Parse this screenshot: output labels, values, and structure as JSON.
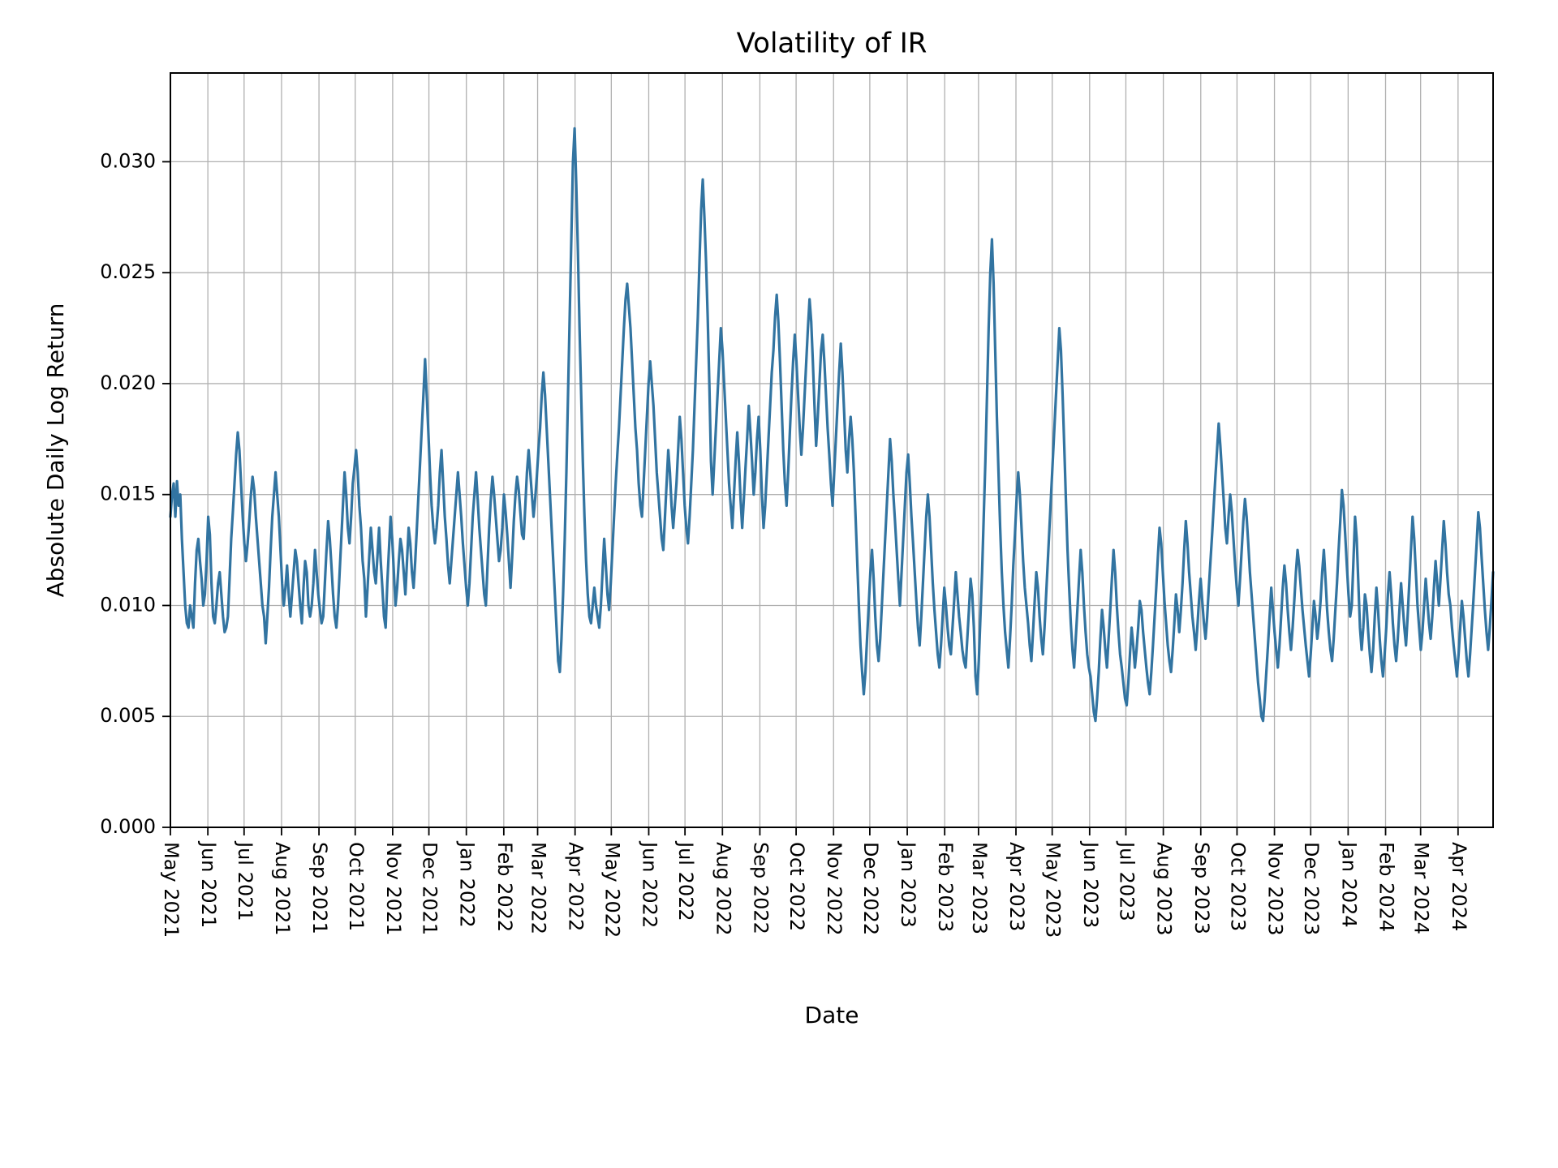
{
  "chart": {
    "type": "line",
    "title": "Volatility of IR",
    "title_fontsize": 34,
    "xlabel": "Date",
    "ylabel": "Absolute Daily Log Return",
    "label_fontsize": 28,
    "tick_fontsize": 24,
    "background_color": "#ffffff",
    "grid_color": "#b0b0b0",
    "axis_color": "#000000",
    "line_color": "#3274a1",
    "line_width": 3.2,
    "spine_width": 2.0,
    "tick_width": 1.8,
    "ylim": [
      0.0,
      0.034
    ],
    "yticks": [
      0.0,
      0.005,
      0.01,
      0.015,
      0.02,
      0.025,
      0.03
    ],
    "ytick_labels": [
      "0.000",
      "0.005",
      "0.010",
      "0.015",
      "0.020",
      "0.025",
      "0.030"
    ],
    "x_tick_labels": [
      "May 2021",
      "Jun 2021",
      "Jul 2021",
      "Aug 2021",
      "Sep 2021",
      "Oct 2021",
      "Nov 2021",
      "Dec 2021",
      "Jan 2022",
      "Feb 2022",
      "Mar 2022",
      "Apr 2022",
      "May 2022",
      "Jun 2022",
      "Jul 2022",
      "Aug 2022",
      "Sep 2022",
      "Oct 2022",
      "Nov 2022",
      "Dec 2022",
      "Jan 2023",
      "Feb 2023",
      "Mar 2023",
      "Apr 2023",
      "May 2023",
      "Jun 2023",
      "Jul 2023",
      "Aug 2023",
      "Sep 2023",
      "Oct 2023",
      "Nov 2023",
      "Dec 2023",
      "Jan 2024",
      "Feb 2024",
      "Mar 2024",
      "Apr 2024"
    ],
    "x_tick_positions_days": [
      0,
      31,
      61,
      92,
      123,
      153,
      184,
      214,
      245,
      276,
      304,
      335,
      365,
      396,
      426,
      457,
      488,
      518,
      549,
      579,
      610,
      641,
      669,
      700,
      730,
      761,
      791,
      822,
      853,
      883,
      914,
      944,
      975,
      1006,
      1035,
      1066
    ],
    "x_range_days": [
      0,
      1095
    ],
    "n_points": 730,
    "values": [
      0.014,
      0.015,
      0.0155,
      0.014,
      0.0156,
      0.0145,
      0.015,
      0.013,
      0.0115,
      0.01,
      0.0092,
      0.009,
      0.01,
      0.0095,
      0.009,
      0.011,
      0.0125,
      0.013,
      0.012,
      0.0112,
      0.01,
      0.0105,
      0.012,
      0.014,
      0.0132,
      0.011,
      0.0095,
      0.0092,
      0.01,
      0.011,
      0.0115,
      0.0105,
      0.0095,
      0.0088,
      0.009,
      0.0095,
      0.0112,
      0.013,
      0.0142,
      0.0155,
      0.0168,
      0.0178,
      0.017,
      0.0155,
      0.014,
      0.0128,
      0.012,
      0.0128,
      0.0138,
      0.015,
      0.0158,
      0.0152,
      0.014,
      0.013,
      0.012,
      0.011,
      0.01,
      0.0095,
      0.0083,
      0.0095,
      0.0108,
      0.0125,
      0.014,
      0.015,
      0.016,
      0.015,
      0.014,
      0.0125,
      0.011,
      0.01,
      0.0108,
      0.0118,
      0.0105,
      0.0095,
      0.0105,
      0.0115,
      0.0125,
      0.012,
      0.011,
      0.01,
      0.0092,
      0.0108,
      0.012,
      0.0115,
      0.01,
      0.0095,
      0.01,
      0.011,
      0.0125,
      0.0115,
      0.0105,
      0.0098,
      0.0092,
      0.0095,
      0.011,
      0.0125,
      0.0138,
      0.013,
      0.0118,
      0.0105,
      0.0095,
      0.009,
      0.01,
      0.0115,
      0.013,
      0.0145,
      0.016,
      0.015,
      0.0135,
      0.0128,
      0.014,
      0.0155,
      0.0162,
      0.017,
      0.016,
      0.0145,
      0.0135,
      0.012,
      0.0112,
      0.0095,
      0.0108,
      0.0122,
      0.0135,
      0.0125,
      0.0115,
      0.011,
      0.0122,
      0.0135,
      0.012,
      0.0108,
      0.0095,
      0.009,
      0.011,
      0.0125,
      0.014,
      0.013,
      0.0115,
      0.01,
      0.0108,
      0.012,
      0.013,
      0.0125,
      0.0115,
      0.0105,
      0.012,
      0.0135,
      0.0128,
      0.0115,
      0.0108,
      0.012,
      0.0135,
      0.015,
      0.0165,
      0.018,
      0.0195,
      0.0211,
      0.0195,
      0.0178,
      0.016,
      0.0145,
      0.0135,
      0.0128,
      0.0135,
      0.0145,
      0.016,
      0.017,
      0.0155,
      0.014,
      0.013,
      0.0118,
      0.011,
      0.012,
      0.013,
      0.014,
      0.015,
      0.016,
      0.015,
      0.014,
      0.0128,
      0.0118,
      0.0108,
      0.01,
      0.011,
      0.0125,
      0.014,
      0.015,
      0.016,
      0.0148,
      0.0135,
      0.0125,
      0.0115,
      0.0105,
      0.01,
      0.0118,
      0.0135,
      0.0148,
      0.0158,
      0.015,
      0.014,
      0.013,
      0.012,
      0.0125,
      0.0135,
      0.015,
      0.0142,
      0.0132,
      0.012,
      0.0108,
      0.0122,
      0.0138,
      0.015,
      0.0158,
      0.0152,
      0.0142,
      0.0132,
      0.013,
      0.0145,
      0.016,
      0.017,
      0.016,
      0.015,
      0.014,
      0.0148,
      0.0158,
      0.017,
      0.018,
      0.0195,
      0.0205,
      0.0195,
      0.018,
      0.0165,
      0.015,
      0.0135,
      0.012,
      0.0105,
      0.009,
      0.0075,
      0.007,
      0.0085,
      0.0105,
      0.013,
      0.016,
      0.0195,
      0.023,
      0.0265,
      0.03,
      0.0315,
      0.029,
      0.026,
      0.0225,
      0.0195,
      0.0165,
      0.014,
      0.012,
      0.0105,
      0.0095,
      0.0092,
      0.01,
      0.0108,
      0.01,
      0.0095,
      0.009,
      0.01,
      0.0115,
      0.013,
      0.0118,
      0.0105,
      0.0098,
      0.011,
      0.0125,
      0.014,
      0.0155,
      0.0168,
      0.018,
      0.0195,
      0.021,
      0.0225,
      0.0238,
      0.0245,
      0.0235,
      0.0225,
      0.021,
      0.0195,
      0.018,
      0.017,
      0.0155,
      0.0145,
      0.014,
      0.0155,
      0.017,
      0.0185,
      0.02,
      0.021,
      0.02,
      0.019,
      0.0175,
      0.016,
      0.015,
      0.014,
      0.013,
      0.0125,
      0.014,
      0.0155,
      0.017,
      0.016,
      0.0145,
      0.0135,
      0.0145,
      0.0155,
      0.017,
      0.0185,
      0.0175,
      0.016,
      0.0145,
      0.0135,
      0.0128,
      0.014,
      0.0155,
      0.017,
      0.019,
      0.021,
      0.023,
      0.0255,
      0.0278,
      0.0292,
      0.0275,
      0.0255,
      0.023,
      0.02,
      0.0165,
      0.015,
      0.0165,
      0.018,
      0.0195,
      0.021,
      0.0225,
      0.0215,
      0.02,
      0.0185,
      0.017,
      0.0155,
      0.0145,
      0.0135,
      0.015,
      0.0165,
      0.0178,
      0.0165,
      0.0148,
      0.0135,
      0.0148,
      0.0162,
      0.0175,
      0.019,
      0.0178,
      0.0165,
      0.015,
      0.016,
      0.0175,
      0.0185,
      0.017,
      0.015,
      0.0135,
      0.0145,
      0.016,
      0.0175,
      0.019,
      0.0205,
      0.0215,
      0.023,
      0.024,
      0.0228,
      0.021,
      0.019,
      0.017,
      0.0155,
      0.0145,
      0.016,
      0.0178,
      0.0195,
      0.021,
      0.0222,
      0.021,
      0.0195,
      0.018,
      0.0168,
      0.018,
      0.0195,
      0.021,
      0.0225,
      0.0238,
      0.0228,
      0.021,
      0.019,
      0.0172,
      0.0185,
      0.02,
      0.0215,
      0.0222,
      0.021,
      0.0195,
      0.018,
      0.0168,
      0.0155,
      0.0145,
      0.016,
      0.0175,
      0.019,
      0.0205,
      0.0218,
      0.0205,
      0.0188,
      0.017,
      0.016,
      0.0175,
      0.0185,
      0.0175,
      0.016,
      0.014,
      0.012,
      0.01,
      0.0082,
      0.007,
      0.006,
      0.007,
      0.0085,
      0.01,
      0.0115,
      0.0125,
      0.0112,
      0.0095,
      0.0082,
      0.0075,
      0.0085,
      0.01,
      0.0115,
      0.013,
      0.0145,
      0.016,
      0.0175,
      0.0165,
      0.015,
      0.0138,
      0.0125,
      0.0112,
      0.01,
      0.0115,
      0.013,
      0.0145,
      0.016,
      0.0168,
      0.0155,
      0.014,
      0.0128,
      0.0115,
      0.0102,
      0.009,
      0.0082,
      0.0095,
      0.011,
      0.0125,
      0.014,
      0.015,
      0.014,
      0.0125,
      0.011,
      0.0098,
      0.0088,
      0.0078,
      0.0072,
      0.0082,
      0.0095,
      0.0108,
      0.01,
      0.009,
      0.0082,
      0.0078,
      0.009,
      0.0102,
      0.0115,
      0.0105,
      0.0095,
      0.0088,
      0.008,
      0.0075,
      0.0072,
      0.0085,
      0.0098,
      0.0112,
      0.0105,
      0.009,
      0.0068,
      0.006,
      0.0075,
      0.0095,
      0.0115,
      0.014,
      0.0165,
      0.0195,
      0.0225,
      0.025,
      0.0265,
      0.0245,
      0.0215,
      0.0185,
      0.016,
      0.0135,
      0.0115,
      0.01,
      0.0088,
      0.008,
      0.0072,
      0.0085,
      0.01,
      0.0118,
      0.0132,
      0.0148,
      0.016,
      0.015,
      0.0135,
      0.012,
      0.0108,
      0.01,
      0.0092,
      0.0082,
      0.0075,
      0.0088,
      0.0102,
      0.0115,
      0.0108,
      0.0095,
      0.0085,
      0.0078,
      0.009,
      0.0105,
      0.012,
      0.0135,
      0.015,
      0.0165,
      0.018,
      0.0195,
      0.021,
      0.0225,
      0.0215,
      0.0195,
      0.0172,
      0.0148,
      0.0125,
      0.0108,
      0.0092,
      0.008,
      0.0072,
      0.0085,
      0.0098,
      0.0112,
      0.0125,
      0.0115,
      0.01,
      0.0088,
      0.0078,
      0.0072,
      0.0068,
      0.006,
      0.0052,
      0.0048,
      0.0058,
      0.007,
      0.0085,
      0.0098,
      0.009,
      0.008,
      0.0072,
      0.0085,
      0.0098,
      0.0112,
      0.0125,
      0.0115,
      0.01,
      0.0088,
      0.0078,
      0.0072,
      0.0065,
      0.0058,
      0.0055,
      0.0065,
      0.0078,
      0.009,
      0.0082,
      0.0072,
      0.008,
      0.009,
      0.0102,
      0.0098,
      0.0088,
      0.008,
      0.0072,
      0.0065,
      0.006,
      0.007,
      0.0082,
      0.0095,
      0.0108,
      0.0122,
      0.0135,
      0.0128,
      0.0115,
      0.0102,
      0.0092,
      0.0082,
      0.0075,
      0.007,
      0.008,
      0.0092,
      0.0105,
      0.0098,
      0.0088,
      0.0098,
      0.011,
      0.0125,
      0.0138,
      0.0128,
      0.0115,
      0.0105,
      0.0095,
      0.0088,
      0.008,
      0.009,
      0.0102,
      0.0112,
      0.0102,
      0.0092,
      0.0085,
      0.0095,
      0.0108,
      0.012,
      0.0132,
      0.0145,
      0.0158,
      0.017,
      0.0182,
      0.0172,
      0.016,
      0.0148,
      0.0135,
      0.0128,
      0.014,
      0.015,
      0.0142,
      0.013,
      0.0118,
      0.0108,
      0.01,
      0.0112,
      0.0125,
      0.0138,
      0.0148,
      0.014,
      0.0128,
      0.0115,
      0.0105,
      0.0095,
      0.0085,
      0.0075,
      0.0065,
      0.0058,
      0.005,
      0.0048,
      0.0058,
      0.007,
      0.0082,
      0.0095,
      0.0108,
      0.0098,
      0.0088,
      0.008,
      0.0072,
      0.0082,
      0.0095,
      0.0108,
      0.0118,
      0.011,
      0.0098,
      0.0088,
      0.008,
      0.009,
      0.0102,
      0.0115,
      0.0125,
      0.0118,
      0.0108,
      0.0098,
      0.009,
      0.0082,
      0.0075,
      0.0068,
      0.0078,
      0.009,
      0.0102,
      0.0095,
      0.0085,
      0.0092,
      0.0102,
      0.0115,
      0.0125,
      0.0112,
      0.0098,
      0.0088,
      0.008,
      0.0075,
      0.0085,
      0.0098,
      0.011,
      0.0125,
      0.0138,
      0.0152,
      0.0145,
      0.0132,
      0.0118,
      0.0105,
      0.0095,
      0.01,
      0.012,
      0.014,
      0.013,
      0.011,
      0.009,
      0.008,
      0.009,
      0.0105,
      0.01,
      0.0088,
      0.0078,
      0.007,
      0.008,
      0.0095,
      0.0108,
      0.0098,
      0.0085,
      0.0075,
      0.0068,
      0.0078,
      0.009,
      0.0105,
      0.0115,
      0.0105,
      0.0092,
      0.0082,
      0.0075,
      0.0085,
      0.0098,
      0.011,
      0.01,
      0.009,
      0.0082,
      0.0095,
      0.011,
      0.0125,
      0.014,
      0.013,
      0.0115,
      0.01,
      0.009,
      0.008,
      0.0088,
      0.01,
      0.0112,
      0.0102,
      0.0092,
      0.0085,
      0.0095,
      0.0108,
      0.012,
      0.011,
      0.01,
      0.0112,
      0.0125,
      0.0138,
      0.0128,
      0.0115,
      0.0105,
      0.01,
      0.009,
      0.0082,
      0.0075,
      0.0068,
      0.0078,
      0.009,
      0.0102,
      0.0095,
      0.0085,
      0.0075,
      0.0068,
      0.0078,
      0.009,
      0.0102,
      0.0115,
      0.0128,
      0.0142,
      0.0135,
      0.0122,
      0.011,
      0.0098,
      0.0088,
      0.008,
      0.009,
      0.0102,
      0.0115
    ]
  }
}
